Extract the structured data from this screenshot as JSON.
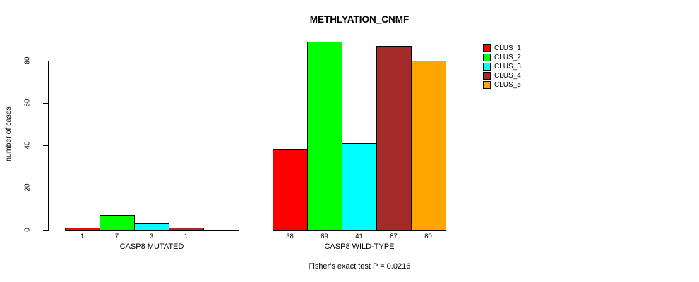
{
  "title": "METHLYATION_CNMF",
  "footer": "Fisher's exact test P = 0.0216",
  "y_axis": {
    "label": "number of cases",
    "ticks": [
      0,
      20,
      40,
      60,
      80
    ]
  },
  "legend": {
    "items": [
      {
        "label": "CLUS_1",
        "color": "#FF0000"
      },
      {
        "label": "CLUS_2",
        "color": "#00FF00"
      },
      {
        "label": "CLUS_3",
        "color": "#00FFFF"
      },
      {
        "label": "CLUS_4",
        "color": "#A52A2A"
      },
      {
        "label": "CLUS_5",
        "color": "#FFA500"
      }
    ]
  },
  "chart_data": {
    "type": "bar",
    "title": "METHLYATION_CNMF",
    "xlabel": "",
    "ylabel": "number of cases",
    "ylim": [
      0,
      89
    ],
    "yticks": [
      0,
      20,
      40,
      60,
      80
    ],
    "grid": false,
    "legend_position": "right",
    "series_names": [
      "CLUS_1",
      "CLUS_2",
      "CLUS_3",
      "CLUS_4",
      "CLUS_5"
    ],
    "series_colors": [
      "#FF0000",
      "#00FF00",
      "#00FFFF",
      "#A52A2A",
      "#FFA500"
    ],
    "groups": [
      {
        "label": "CASP8 MUTATED",
        "values": [
          1,
          7,
          3,
          1,
          0
        ],
        "value_labels": [
          "1",
          "7",
          "3",
          "1",
          ""
        ]
      },
      {
        "label": "CASP8 WILD-TYPE",
        "values": [
          38,
          89,
          41,
          87,
          80
        ],
        "value_labels": [
          "38",
          "89",
          "41",
          "87",
          "80"
        ]
      }
    ],
    "annotation": "Fisher's exact test P = 0.0216"
  }
}
